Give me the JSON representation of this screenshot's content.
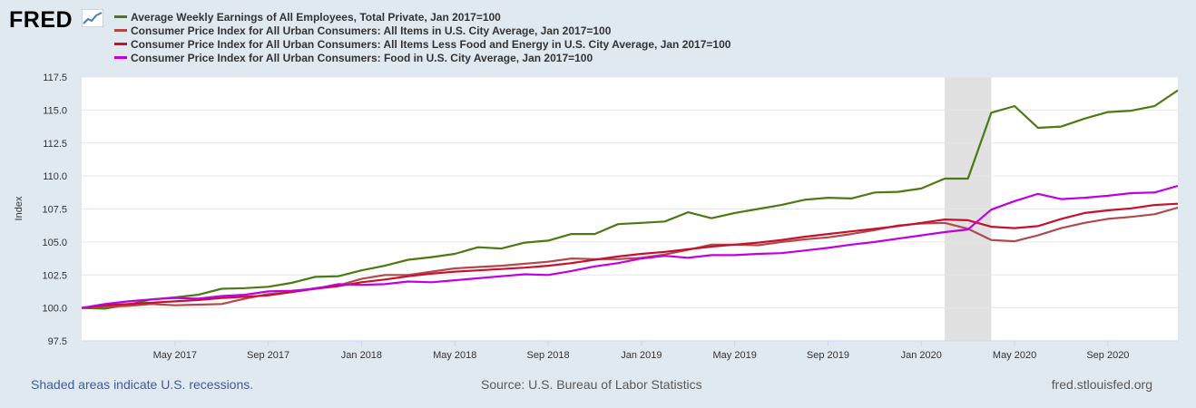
{
  "header": {
    "logo_text": "FRED",
    "logo_icon": "line-chart-icon"
  },
  "colors": {
    "background": "#e1e9f0",
    "plot_background": "#ffffff",
    "recession_shade": "#e1e1e1"
  },
  "footer": {
    "recessions_note": "Shaded areas indicate U.S. recessions.",
    "source": "Source: U.S. Bureau of Labor Statistics",
    "site": "fred.stlouisfed.org"
  },
  "chart_data": {
    "type": "line",
    "title": "",
    "xlabel": "",
    "ylabel": "Index",
    "ylim": [
      97.5,
      117.5
    ],
    "yticks": [
      "97.5",
      "100.0",
      "102.5",
      "105.0",
      "107.5",
      "110.0",
      "112.5",
      "115.0",
      "117.5"
    ],
    "xticks": [
      {
        "label": "May 2017",
        "index": 4
      },
      {
        "label": "Sep 2017",
        "index": 8
      },
      {
        "label": "Jan 2018",
        "index": 12
      },
      {
        "label": "May 2018",
        "index": 16
      },
      {
        "label": "Sep 2018",
        "index": 20
      },
      {
        "label": "Jan 2019",
        "index": 24
      },
      {
        "label": "May 2019",
        "index": 28
      },
      {
        "label": "Sep 2019",
        "index": 32
      },
      {
        "label": "Jan 2020",
        "index": 36
      },
      {
        "label": "May 2020",
        "index": 40
      },
      {
        "label": "Sep 2020",
        "index": 44
      }
    ],
    "x_start": "Jan 2017",
    "x_end": "Dec 2020",
    "recession": {
      "start_index": 37,
      "end_index": 39
    },
    "series": [
      {
        "name": "Average Weekly Earnings of All Employees, Total Private, Jan 2017=100",
        "color": "#4b7a12",
        "values": [
          100.0,
          99.95,
          100.25,
          100.65,
          100.8,
          101.0,
          101.45,
          101.5,
          101.6,
          101.9,
          102.35,
          102.4,
          102.85,
          103.2,
          103.65,
          103.85,
          104.1,
          104.6,
          104.5,
          104.95,
          105.1,
          105.6,
          105.6,
          106.35,
          106.45,
          106.55,
          107.25,
          106.8,
          107.2,
          107.5,
          107.8,
          108.2,
          108.35,
          108.3,
          108.75,
          108.8,
          109.05,
          109.8,
          109.8,
          114.8,
          115.3,
          113.65,
          113.75,
          114.35,
          114.85,
          114.95,
          115.3,
          116.5
        ]
      },
      {
        "name": "Consumer Price Index for All Urban Consumers: All Items in U.S. City Average, Jan 2017=100",
        "color": "#b04a4a",
        "values": [
          100.0,
          100.1,
          100.15,
          100.3,
          100.2,
          100.25,
          100.3,
          100.7,
          101.05,
          101.2,
          101.5,
          101.7,
          102.2,
          102.5,
          102.5,
          102.75,
          103.0,
          103.1,
          103.2,
          103.35,
          103.5,
          103.75,
          103.7,
          103.7,
          103.8,
          104.05,
          104.4,
          104.8,
          104.8,
          104.75,
          105.0,
          105.2,
          105.35,
          105.6,
          105.9,
          106.25,
          106.4,
          106.45,
          106.0,
          105.15,
          105.05,
          105.5,
          106.05,
          106.45,
          106.75,
          106.9,
          107.1,
          107.6
        ]
      },
      {
        "name": "Consumer Price Index for All Urban Consumers: All Items Less Food and Energy in U.S. City Average, Jan 2017=100",
        "color": "#c8102e",
        "values": [
          100.0,
          100.2,
          100.3,
          100.4,
          100.5,
          100.6,
          100.75,
          100.85,
          100.95,
          101.2,
          101.45,
          101.65,
          101.95,
          102.15,
          102.4,
          102.6,
          102.75,
          102.85,
          102.95,
          103.05,
          103.2,
          103.4,
          103.65,
          103.9,
          104.1,
          104.25,
          104.45,
          104.65,
          104.8,
          104.95,
          105.15,
          105.4,
          105.6,
          105.8,
          106.0,
          106.2,
          106.45,
          106.7,
          106.65,
          106.15,
          106.05,
          106.2,
          106.75,
          107.2,
          107.4,
          107.55,
          107.8,
          107.9
        ]
      },
      {
        "name": "Consumer Price Index for All Urban Consumers: Food in U.S. City Average, Jan 2017=100",
        "color": "#c000e0",
        "values": [
          100.0,
          100.3,
          100.5,
          100.65,
          100.75,
          100.7,
          100.9,
          101.0,
          101.25,
          101.3,
          101.45,
          101.8,
          101.75,
          101.8,
          102.0,
          101.95,
          102.1,
          102.25,
          102.4,
          102.55,
          102.5,
          102.8,
          103.15,
          103.4,
          103.75,
          103.95,
          103.8,
          104.0,
          104.0,
          104.1,
          104.15,
          104.35,
          104.55,
          104.8,
          105.0,
          105.25,
          105.5,
          105.75,
          105.95,
          107.45,
          108.1,
          108.65,
          108.25,
          108.35,
          108.5,
          108.7,
          108.75,
          109.25
        ]
      }
    ]
  }
}
